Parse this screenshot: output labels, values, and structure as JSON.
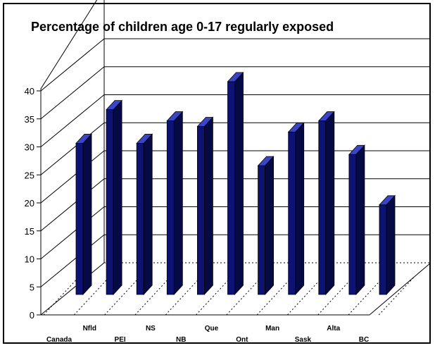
{
  "chart_data": {
    "type": "bar",
    "title": "Percentage of children age 0-17 regularly exposed",
    "xlabel": "",
    "ylabel": "",
    "ylim": [
      0,
      40
    ],
    "yticks": [
      "0",
      "5",
      "10",
      "15",
      "20",
      "25",
      "30",
      "35",
      "40"
    ],
    "grid": true,
    "categories": [
      "Canada",
      "Nfld",
      "PEI",
      "NS",
      "NB",
      "Que",
      "Ont",
      "Man",
      "Sask",
      "Alta",
      "BC"
    ],
    "values": [
      27,
      33,
      27,
      31,
      30,
      38,
      23,
      29,
      31,
      25,
      16
    ],
    "colors": {
      "bar_front": "#0d1373",
      "bar_side": "#050a45",
      "bar_top": "#3a44c8",
      "grid": "#000000"
    }
  }
}
